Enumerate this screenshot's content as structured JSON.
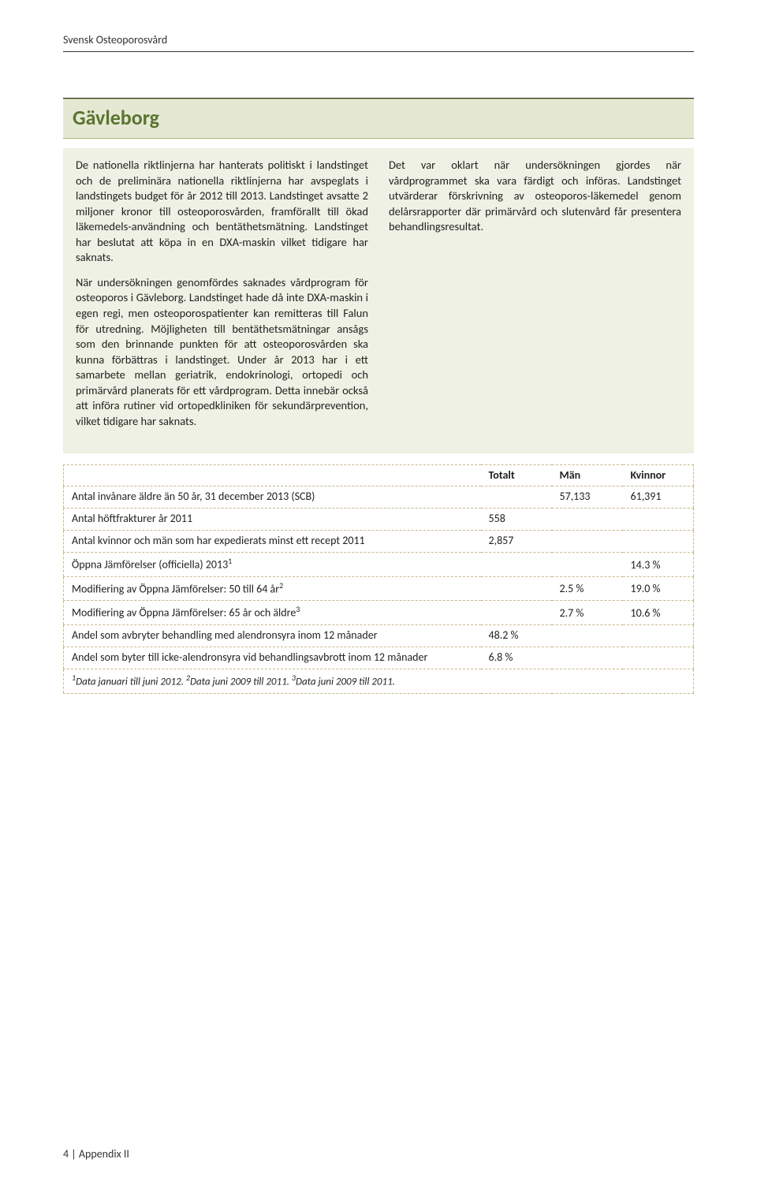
{
  "running_header": "Svensk Osteoporosvård",
  "title": "Gävleborg",
  "colors": {
    "title_bg": "#e5e9d4",
    "title_border": "#a9b97a",
    "title_text": "#5c7430",
    "body_bg": "#eef1e3",
    "table_border": "#c8b88a"
  },
  "paragraphs": {
    "left1": "De nationella riktlinjerna har hanterats politiskt i landstinget och de preliminära nationella riktlinjerna har avspeglats i landstingets budget för år 2012 till 2013. Landstinget avsatte 2 miljoner kronor till osteoporosvården, framförallt till ökad läkemedels-användning och bentäthetsmätning. Landstinget har beslutat att köpa in en DXA-maskin vilket tidigare har saknats.",
    "left2": "När undersökningen genomfördes saknades vårdprogram för osteoporos i Gävleborg. Landstinget hade då inte DXA-maskin i egen regi, men osteoporospatienter kan remitteras till Falun för utredning. Möjligheten till bentäthetsmätningar ansågs som den brinnande punkten för att osteoporosvården ska kunna förbättras i landstinget. Under år 2013 har i ett samarbete mellan geriatrik, endokrinologi, ortopedi och primärvård planerats för ett vårdprogram. Detta innebär också att införa rutiner vid ortopedkliniken för sekundärprevention, vilket tidigare har saknats.",
    "right1": "Det var oklart när undersökningen gjordes när vårdprogrammet ska vara färdigt och införas. Landstinget utvärderar förskrivning av osteoporos-läkemedel genom delårsrapporter där primärvård och slutenvård får presentera behandlingsresultat."
  },
  "table": {
    "headers": {
      "totalt": "Totalt",
      "man": "Män",
      "kvinnor": "Kvinnor"
    },
    "rows": [
      {
        "label": "Antal invånare äldre än 50 år, 31 december 2013 (SCB)",
        "totalt": "",
        "man": "57,133",
        "kvinnor": "61,391"
      },
      {
        "label": "Antal höftfrakturer år 2011",
        "totalt": "558",
        "man": "",
        "kvinnor": ""
      },
      {
        "label": "Antal kvinnor och män som har expedierats minst ett recept 2011",
        "totalt": "2,857",
        "man": "",
        "kvinnor": ""
      },
      {
        "label_html": "Öppna Jämförelser (officiella) 2013",
        "sup": "1",
        "totalt": "",
        "man": "",
        "kvinnor": "14.3 %"
      },
      {
        "label_html": "Modifiering av Öppna Jämförelser: 50 till 64 år",
        "sup": "2",
        "totalt": "",
        "man": "2.5 %",
        "kvinnor": "19.0 %"
      },
      {
        "label_html": "Modifiering av Öppna Jämförelser: 65 år och äldre",
        "sup": "3",
        "totalt": "",
        "man": "2.7 %",
        "kvinnor": "10.6 %"
      },
      {
        "label": "Andel som avbryter behandling med alendronsyra inom 12 månader",
        "totalt": "48.2 %",
        "man": "",
        "kvinnor": ""
      },
      {
        "label": "Andel som byter till icke-alendronsyra vid behandlingsavbrott inom 12 månader",
        "totalt": "6.8 %",
        "man": "",
        "kvinnor": ""
      }
    ],
    "footnote_parts": {
      "s1": "1",
      "t1": "Data januari till juni 2012. ",
      "s2": "2",
      "t2": "Data juni 2009 till 2011. ",
      "s3": "3",
      "t3": "Data juni 2009 till 2011."
    }
  },
  "footer": {
    "page_num": "4",
    "sep": " | ",
    "section": "Appendix II"
  }
}
